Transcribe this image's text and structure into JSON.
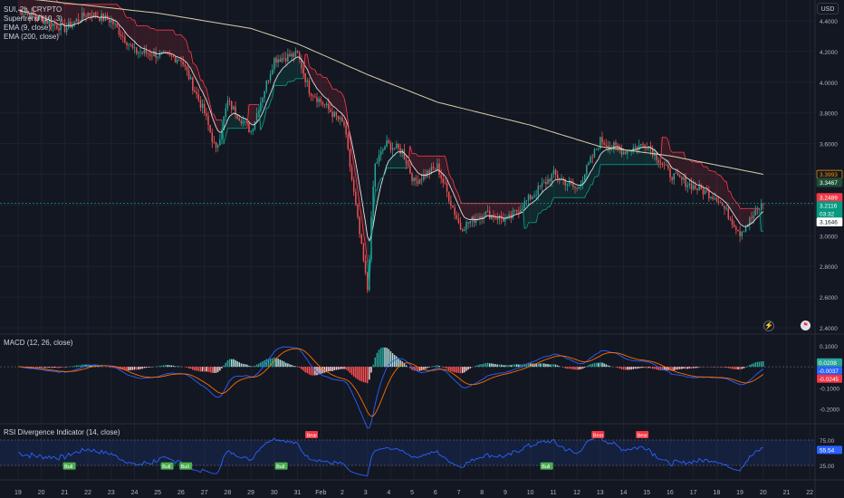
{
  "main_legend": {
    "symbol": "SUI, 2h, CRYPTO",
    "supertrend": "Supertrend (10, 3)",
    "ema9": "EMA (9, close)",
    "ema200": "EMA (200, close)"
  },
  "currency_button": "USD",
  "macd_legend": "MACD (12, 26, close)",
  "rsi_legend": "RSI Divergence Indicator (14, close)",
  "x_axis_labels": [
    "19",
    "20",
    "21",
    "22",
    "23",
    "24",
    "25",
    "26",
    "27",
    "28",
    "29",
    "30",
    "31",
    "Feb",
    "2",
    "3",
    "4",
    "5",
    "6",
    "7",
    "8",
    "9",
    "10",
    "11",
    "12",
    "13",
    "14",
    "15",
    "16",
    "17",
    "18",
    "19",
    "20",
    "21",
    "22"
  ],
  "price_axis": {
    "ticks": [
      "4.4000",
      "4.2000",
      "4.0000",
      "3.8000",
      "3.6000",
      "3.4000",
      "3.2000",
      "3.0000",
      "2.8000",
      "2.6000",
      "2.4000"
    ],
    "tags": [
      {
        "text": "3.3993",
        "bg": "#131722",
        "fg": "#ff9800",
        "border": "#ff9800"
      },
      {
        "text": "3.3467",
        "bg": "#1e4d35",
        "fg": "#ffffff",
        "border": "#1e4d35"
      },
      {
        "text": "3.2489",
        "bg": "#f23645",
        "fg": "#ffffff",
        "border": "#f23645"
      },
      {
        "text": "3.2116",
        "bg": "#089981",
        "fg": "#ffffff",
        "border": "#089981"
      },
      {
        "text": "03:32",
        "bg": "#089981",
        "fg": "#ffffff",
        "border": "#089981"
      },
      {
        "text": "3.1646",
        "bg": "#ffffff",
        "fg": "#131722",
        "border": "#ffffff"
      }
    ]
  },
  "macd_axis": {
    "ticks": [
      "0.1000",
      "0.0000",
      "-0.1000",
      "-0.2000"
    ],
    "tags": [
      {
        "text": "0.0208",
        "bg": "#26a69a",
        "fg": "#ffffff"
      },
      {
        "text": "-0.0037",
        "bg": "#2962ff",
        "fg": "#ffffff"
      },
      {
        "text": "-0.0245",
        "bg": "#f23645",
        "fg": "#ffffff"
      }
    ]
  },
  "rsi_axis": {
    "ticks": [
      "75.00",
      "25.00"
    ],
    "tags": [
      {
        "text": "55.54",
        "bg": "#2962ff",
        "fg": "#ffffff"
      }
    ]
  },
  "rsi_signals": [
    "Bull",
    "Bull",
    "Bull",
    "Bull",
    "Bear",
    "Bull",
    "Bear",
    "Bear"
  ],
  "colors": {
    "up": "#26a69a",
    "down": "#ef5350",
    "ema9": "#e8eaed",
    "ema200": "#d6cfa9",
    "supertrend_down": "#f23645",
    "supertrend_up": "#089981",
    "macd_line": "#2962ff",
    "signal_line": "#ff6d00",
    "rsi_line": "#2962ff",
    "rsi_band": "#2962ff"
  },
  "chart_data": {
    "type": "candlestick",
    "title": "SUI, 2h, CRYPTO",
    "x": [
      "19",
      "20",
      "21",
      "22",
      "23",
      "24",
      "25",
      "26",
      "27",
      "28",
      "29",
      "30",
      "31",
      "Feb",
      "2",
      "3",
      "4",
      "5",
      "6",
      "7",
      "8",
      "9",
      "10",
      "11",
      "12",
      "13",
      "14",
      "15",
      "16",
      "17",
      "18",
      "19",
      "20",
      "21",
      "22"
    ],
    "ylim": [
      2.4,
      4.5
    ],
    "close_keypoints": [
      [
        "19",
        4.47
      ],
      [
        "21",
        4.35
      ],
      [
        "22",
        4.45
      ],
      [
        "23",
        4.4
      ],
      [
        "24",
        4.2
      ],
      [
        "25",
        4.18
      ],
      [
        "26",
        4.15
      ],
      [
        "27",
        3.8
      ],
      [
        "27.5",
        3.55
      ],
      [
        "28",
        3.87
      ],
      [
        "29",
        3.68
      ],
      [
        "30",
        4.15
      ],
      [
        "31",
        4.18
      ],
      [
        "31.5",
        3.95
      ],
      [
        "2",
        3.72
      ],
      [
        "3",
        2.65
      ],
      [
        "3.3",
        3.45
      ],
      [
        "3.8",
        3.6
      ],
      [
        "4.5",
        3.55
      ],
      [
        "5",
        3.35
      ],
      [
        "6",
        3.45
      ],
      [
        "7",
        3.05
      ],
      [
        "8",
        3.15
      ],
      [
        "9",
        3.1
      ],
      [
        "10",
        3.25
      ],
      [
        "11",
        3.4
      ],
      [
        "12",
        3.3
      ],
      [
        "13",
        3.62
      ],
      [
        "14",
        3.55
      ],
      [
        "15",
        3.6
      ],
      [
        "16",
        3.4
      ],
      [
        "17",
        3.32
      ],
      [
        "18",
        3.25
      ],
      [
        "19",
        3.02
      ],
      [
        "20",
        3.21
      ]
    ],
    "ema200_keypoints": [
      [
        "19",
        4.55
      ],
      [
        "25",
        4.45
      ],
      [
        "29",
        4.35
      ],
      [
        "31",
        4.25
      ],
      [
        "3",
        4.05
      ],
      [
        "6",
        3.87
      ],
      [
        "10",
        3.72
      ],
      [
        "13",
        3.58
      ],
      [
        "16",
        3.52
      ],
      [
        "20",
        3.4
      ]
    ],
    "last_price": 3.2116,
    "ema200_last": 3.3993,
    "supertrend_last": 3.2489,
    "macd": {
      "macd_last": -0.0037,
      "signal_last": -0.0245,
      "hist_last": 0.0208,
      "ylim": [
        -0.25,
        0.13
      ]
    },
    "rsi": {
      "last": 55.54,
      "band": [
        25,
        75
      ]
    }
  }
}
